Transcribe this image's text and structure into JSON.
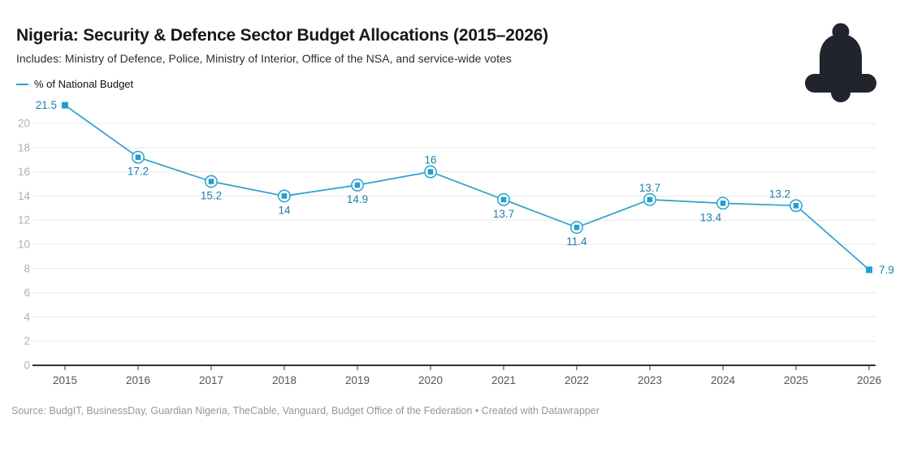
{
  "header": {
    "title": "Nigeria: Security & Defence Sector Budget Allocations (2015–2026)",
    "subtitle": "Includes: Ministry of Defence, Police, Ministry of Interior, Office of the NSA, and service-wide votes"
  },
  "legend": {
    "label": "% of National Budget"
  },
  "icons": {
    "bell": "notification-bell-icon"
  },
  "footer": {
    "source": "Source: BudgIT, BusinessDay, Guardian Nigeria, TheCable, Vanguard, Budget Office of the Federation • Created with Datawrapper"
  },
  "colors": {
    "line": "#2ba1cb",
    "marker": "#22a0cd",
    "value_label": "#1e7ea8",
    "grid": "#e8e8e8",
    "axis": "#333333",
    "ytick_label": "#b0b0b0",
    "xtick_label": "#545454",
    "title": "#181818",
    "subtitle": "#2e2e2e",
    "source": "#979797",
    "bell": "#21242d"
  },
  "chart_data": {
    "type": "line",
    "title": "Nigeria: Security & Defence Sector Budget Allocations (2015–2026)",
    "subtitle": "Includes: Ministry of Defence, Police, Ministry of Interior, Office of the NSA, and service-wide votes",
    "xlabel": "",
    "ylabel": "% of National Budget",
    "categories": [
      "2015",
      "2016",
      "2017",
      "2018",
      "2019",
      "2020",
      "2021",
      "2022",
      "2023",
      "2024",
      "2025",
      "2026"
    ],
    "series": [
      {
        "name": "% of National Budget",
        "color": "#2ba1cb",
        "values": [
          21.5,
          17.2,
          15.2,
          14,
          14.9,
          16,
          13.7,
          11.4,
          13.7,
          13.4,
          13.2,
          7.9
        ]
      }
    ],
    "value_labels": [
      "21.5",
      "17.2",
      "15.2",
      "14",
      "14.9",
      "16",
      "13.7",
      "11.4",
      "13.7",
      "13.4",
      "13.2",
      "7.9"
    ],
    "label_positions": [
      "left",
      "below",
      "below",
      "below",
      "below",
      "above",
      "below",
      "below",
      "above",
      "below-left",
      "above-left",
      "right"
    ],
    "yticks": [
      0,
      2,
      4,
      6,
      8,
      10,
      12,
      14,
      16,
      18,
      20
    ],
    "ylim": [
      0,
      22
    ],
    "grid": "horizontal",
    "legend_position": "top-left",
    "marker_style": "square-in-ring, plain squares on first and last point"
  }
}
